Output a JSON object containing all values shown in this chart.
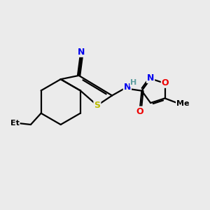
{
  "background_color": "#ebebeb",
  "atom_colors": {
    "C": "#000000",
    "N": "#0000ee",
    "O": "#ee0000",
    "S": "#bbbb00",
    "H": "#5f9ea0"
  },
  "bond_color": "#000000",
  "bond_width": 1.6,
  "figsize": [
    3.0,
    3.0
  ],
  "dpi": 100
}
